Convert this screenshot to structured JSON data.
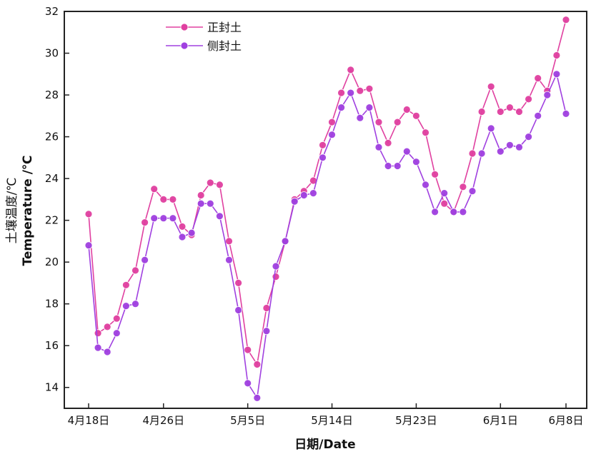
{
  "chart_data": {
    "type": "line",
    "xlabel": "日期/Date",
    "ylabel": "土壤温度/℃  Temperature /℃",
    "ylabel_cn": "土壤温度/℃",
    "ylabel_en": "Temperature /℃",
    "ylim": [
      13,
      32
    ],
    "yticks": [
      14,
      16,
      18,
      20,
      22,
      24,
      26,
      28,
      30,
      32
    ],
    "xlim": [
      -1,
      51
    ],
    "xticks": [
      {
        "index": 0,
        "label": "4月18日"
      },
      {
        "index": 8,
        "label": "4月26日"
      },
      {
        "index": 17,
        "label": "5月5日"
      },
      {
        "index": 26,
        "label": "5月14日"
      },
      {
        "index": 35,
        "label": "5月23日"
      },
      {
        "index": 44,
        "label": "6月1日"
      },
      {
        "index": 51,
        "label": "6月8日"
      }
    ],
    "grid": false,
    "legend_position": "top-left",
    "series": [
      {
        "name": "正封土",
        "color": "#e040a0",
        "x": [
          0,
          1,
          2,
          3,
          4,
          5,
          6,
          7,
          8,
          9,
          10,
          11,
          12,
          13,
          14,
          15,
          16,
          17,
          18,
          19,
          20,
          21,
          22,
          23,
          24,
          25,
          26,
          27,
          28,
          29,
          30,
          31,
          32,
          33,
          34,
          35,
          36,
          37,
          38,
          39,
          40,
          41,
          42,
          43,
          44,
          45,
          46,
          47,
          48,
          49,
          50,
          51
        ],
        "values": [
          22.3,
          16.6,
          16.9,
          17.3,
          18.9,
          19.6,
          21.9,
          23.5,
          23.0,
          23.0,
          21.7,
          21.3,
          23.2,
          23.8,
          23.7,
          21.0,
          19.0,
          15.8,
          15.1,
          17.8,
          19.3,
          21.0,
          23.0,
          23.4,
          23.9,
          25.6,
          26.7,
          28.1,
          29.2,
          28.2,
          28.3,
          26.7,
          25.7,
          26.7,
          27.3,
          27.0,
          26.2,
          24.2,
          22.8,
          22.4,
          23.6,
          25.2,
          27.2,
          28.4,
          27.2,
          27.4,
          27.2,
          27.8,
          28.8,
          28.2,
          29.9,
          31.6
        ]
      },
      {
        "name": "侧封土",
        "color": "#a040e0",
        "x": [
          0,
          1,
          2,
          3,
          4,
          5,
          6,
          7,
          8,
          9,
          10,
          11,
          12,
          13,
          14,
          15,
          16,
          17,
          18,
          19,
          20,
          21,
          22,
          23,
          24,
          25,
          26,
          27,
          28,
          29,
          30,
          31,
          32,
          33,
          34,
          35,
          36,
          37,
          38,
          39,
          40,
          41,
          42,
          43,
          44,
          45,
          46,
          47,
          48,
          49,
          50,
          51
        ],
        "values": [
          20.8,
          15.9,
          15.7,
          16.6,
          17.9,
          18.0,
          20.1,
          22.1,
          22.1,
          22.1,
          21.2,
          21.4,
          22.8,
          22.8,
          22.2,
          20.1,
          17.7,
          14.2,
          13.5,
          16.7,
          19.8,
          21.0,
          22.9,
          23.2,
          23.3,
          25.0,
          26.1,
          27.4,
          28.1,
          26.9,
          27.4,
          25.5,
          24.6,
          24.6,
          25.3,
          24.8,
          23.7,
          22.4,
          23.3,
          22.4,
          22.4,
          23.4,
          25.2,
          26.4,
          25.3,
          25.6,
          25.5,
          26.0,
          27.0,
          28.0,
          29.0,
          27.1
        ]
      }
    ]
  }
}
